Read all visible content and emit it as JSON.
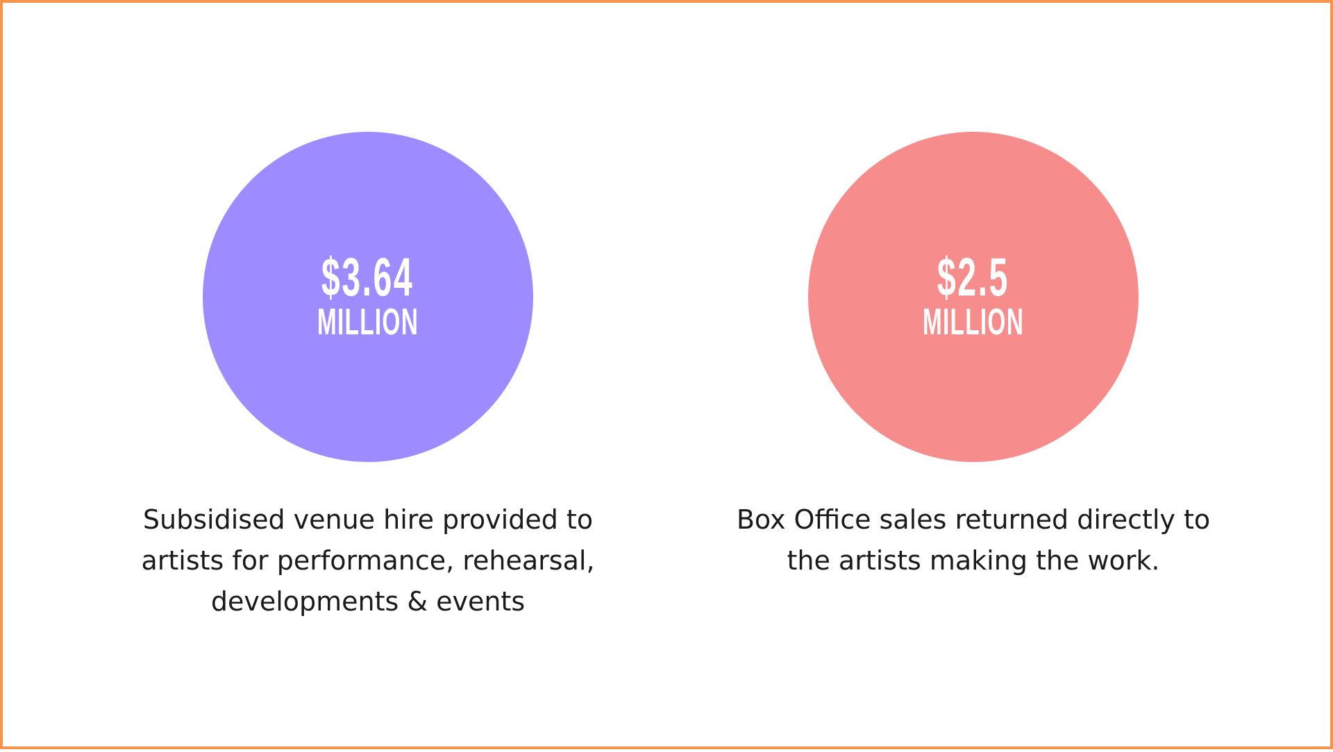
{
  "colors": {
    "border": "#f7934c",
    "circle_left": "#9d8cff",
    "circle_right": "#f78c8c",
    "text_on_circle": "#ffffff",
    "caption_text": "#1a1a1a"
  },
  "stats": [
    {
      "amount": "$3.64",
      "unit": "MILLION",
      "caption_lines": [
        "Subsidised venue hire provided to",
        "artists for performance, rehearsal,",
        "developments & events"
      ]
    },
    {
      "amount": "$2.5",
      "unit": "MILLION",
      "caption_lines": [
        "Box Office sales returned directly to",
        "the artists making the work."
      ]
    }
  ]
}
